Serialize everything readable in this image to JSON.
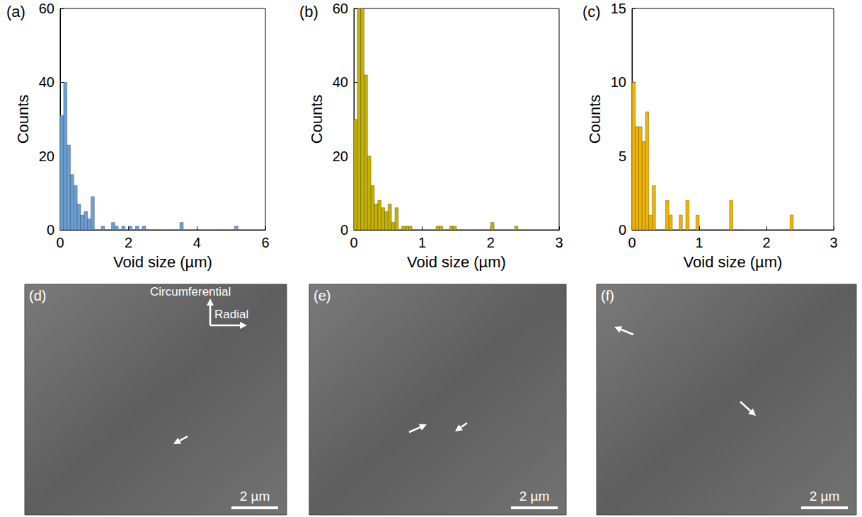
{
  "chart_data": [
    {
      "type": "histogram",
      "title": "(a)",
      "x_label": "Void size (µm)",
      "y_label": "Counts",
      "color": "#6a9fd4",
      "grid": false,
      "xlim": [
        0,
        6
      ],
      "xticks": [
        0,
        2,
        4,
        6
      ],
      "ylim": [
        0,
        60
      ],
      "yticks": [
        0,
        20,
        40,
        60
      ],
      "bins": [
        0,
        0.1,
        0.2,
        0.3,
        0.4,
        0.5,
        0.6,
        0.7,
        0.8,
        0.9,
        1,
        1.1,
        1.2,
        1.3,
        1.4,
        1.5,
        1.6,
        1.7,
        1.8,
        1.9,
        2,
        2.1,
        2.2,
        2.3,
        2.4,
        2.5,
        2.6,
        2.7,
        2.8,
        2.9,
        3,
        3.1,
        3.2,
        3.3,
        3.4,
        3.5,
        3.6,
        3.7,
        3.8,
        3.9,
        4,
        4.1,
        4.2,
        4.3,
        4.4,
        4.5,
        4.6,
        4.7,
        4.8,
        4.9,
        5,
        5.1,
        5.2,
        5.3
      ],
      "values": [
        31,
        40,
        23,
        15,
        12,
        7,
        4,
        5,
        3,
        9,
        0,
        0,
        1,
        0,
        0,
        2,
        1,
        0,
        1,
        0,
        1,
        0,
        1,
        0,
        1,
        0,
        0,
        0,
        0,
        0,
        0,
        0,
        0,
        0,
        0,
        2,
        0,
        0,
        0,
        0,
        0,
        0,
        0,
        0,
        0,
        0,
        0,
        0,
        0,
        0,
        0,
        1,
        0
      ]
    },
    {
      "type": "histogram",
      "title": "(b)",
      "x_label": "Void size (µm)",
      "y_label": "Counts",
      "color": "#c4b100",
      "grid": false,
      "xlim": [
        0,
        3
      ],
      "xticks": [
        0,
        1,
        2,
        3
      ],
      "ylim": [
        0,
        60
      ],
      "yticks": [
        0,
        20,
        40,
        60
      ],
      "bins": [
        0,
        0.05,
        0.1,
        0.15,
        0.2,
        0.25,
        0.3,
        0.35,
        0.4,
        0.45,
        0.5,
        0.55,
        0.6,
        0.65,
        0.7,
        0.75,
        0.8,
        0.85,
        0.9,
        0.95,
        1,
        1.05,
        1.1,
        1.15,
        1.2,
        1.25,
        1.3,
        1.35,
        1.4,
        1.45,
        1.5,
        1.55,
        1.6,
        1.65,
        1.7,
        1.75,
        1.8,
        1.85,
        1.9,
        1.95,
        2,
        2.05,
        2.1,
        2.15,
        2.2,
        2.25,
        2.3,
        2.35,
        2.4
      ],
      "values": [
        30,
        60,
        60,
        42,
        20,
        12,
        7,
        8,
        6,
        5,
        7,
        2,
        6,
        0,
        1,
        1,
        1,
        0,
        0,
        0,
        0,
        0,
        0,
        0,
        1,
        1,
        0,
        0,
        1,
        1,
        0,
        0,
        0,
        0,
        0,
        0,
        0,
        0,
        0,
        0,
        2,
        0,
        0,
        0,
        0,
        0,
        0,
        1
      ]
    },
    {
      "type": "histogram",
      "title": "(c)",
      "x_label": "Void size (µm)",
      "y_label": "Counts",
      "color": "#f0b400",
      "grid": false,
      "xlim": [
        0,
        3
      ],
      "xticks": [
        0,
        1,
        2,
        3
      ],
      "ylim": [
        0,
        15
      ],
      "yticks": [
        0,
        5,
        10,
        15
      ],
      "bins": [
        0,
        0.05,
        0.1,
        0.15,
        0.2,
        0.25,
        0.3,
        0.35,
        0.4,
        0.45,
        0.5,
        0.55,
        0.6,
        0.65,
        0.7,
        0.75,
        0.8,
        0.85,
        0.9,
        0.95,
        1,
        1.05,
        1.1,
        1.15,
        1.2,
        1.25,
        1.3,
        1.35,
        1.4,
        1.45,
        1.5,
        1.55,
        1.6,
        1.65,
        1.7,
        1.75,
        1.8,
        1.85,
        1.9,
        1.95,
        2,
        2.05,
        2.1,
        2.15,
        2.2,
        2.25,
        2.3,
        2.35,
        2.4
      ],
      "values": [
        10,
        7,
        7,
        6,
        8,
        1,
        3,
        0,
        0,
        0,
        2,
        1,
        0,
        0,
        1,
        0,
        2,
        0,
        0,
        1,
        0,
        0,
        0,
        0,
        0,
        0,
        0,
        0,
        0,
        2,
        0,
        0,
        0,
        0,
        0,
        0,
        0,
        0,
        0,
        0,
        0,
        0,
        0,
        0,
        0,
        0,
        0,
        1
      ]
    }
  ],
  "images": [
    {
      "label": "(d)",
      "scale_bar": "2 µm",
      "directions": [
        "Circumferential",
        "Radial"
      ]
    },
    {
      "label": "(e)",
      "scale_bar": "2 µm"
    },
    {
      "label": "(f)",
      "scale_bar": "2 µm"
    }
  ]
}
